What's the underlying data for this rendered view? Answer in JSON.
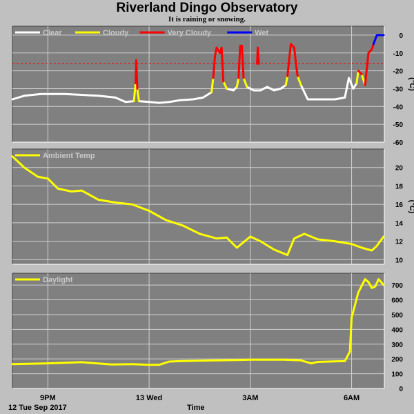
{
  "title": "Riverland Dingo Observatory",
  "subtitle": "It is raining or snowing.",
  "x_axis": {
    "title": "Time",
    "date_label": "12 Tue Sep 2017",
    "ticks": [
      {
        "label": "9PM",
        "t": 21.0
      },
      {
        "label": "13 Wed",
        "t": 24.0
      },
      {
        "label": "3AM",
        "t": 27.0
      },
      {
        "label": "6AM",
        "t": 30.0
      }
    ],
    "range_hours": [
      19.95,
      30.97
    ]
  },
  "colors": {
    "panel_bg": "#808080",
    "page_bg": "#c0c0c0",
    "clear": "#ffffff",
    "cloudy": "#ffff00",
    "very_cloudy": "#ff0000",
    "wet": "#0000ff",
    "temp": "#ffff00",
    "daylight": "#ffff00",
    "threshold": "#ff0000"
  },
  "chart_data": [
    {
      "type": "line",
      "name": "sky",
      "ylabel": "(°C)",
      "ylim": [
        -60,
        5
      ],
      "yticks": [
        0,
        -10,
        -20,
        -30,
        -40,
        -50,
        -60
      ],
      "grid": true,
      "legend": [
        {
          "label": "Clear",
          "color": "#ffffff"
        },
        {
          "label": "Cloudy",
          "color": "#ffff00"
        },
        {
          "label": "Very Cloudy",
          "color": "#ff0000"
        },
        {
          "label": "Wet",
          "color": "#0000ff"
        }
      ],
      "threshold_lines": [
        -16
      ],
      "series": [
        {
          "name": "Clear",
          "color": "#ffffff",
          "segments": [
            [
              [
                19.95,
                -36
              ],
              [
                20.3,
                -34
              ],
              [
                20.8,
                -33
              ],
              [
                21.5,
                -33
              ],
              [
                22.0,
                -33.5
              ],
              [
                22.5,
                -34
              ],
              [
                23.0,
                -35
              ],
              [
                23.3,
                -37.5
              ],
              [
                23.55,
                -37
              ]
            ],
            [
              [
                23.7,
                -37
              ],
              [
                24.0,
                -37.5
              ],
              [
                24.3,
                -38
              ],
              [
                24.6,
                -37.5
              ],
              [
                24.9,
                -36.5
              ],
              [
                25.3,
                -36
              ],
              [
                25.6,
                -35
              ],
              [
                25.85,
                -32
              ]
            ],
            [
              [
                26.3,
                -30
              ],
              [
                26.5,
                -31
              ],
              [
                26.6,
                -29
              ]
            ],
            [
              [
                26.9,
                -29
              ],
              [
                27.1,
                -31
              ],
              [
                27.3,
                -31
              ],
              [
                27.5,
                -29
              ],
              [
                27.7,
                -31
              ],
              [
                27.9,
                -30
              ],
              [
                28.05,
                -28
              ]
            ],
            [
              [
                28.5,
                -28
              ],
              [
                28.7,
                -36
              ],
              [
                29.0,
                -36
              ],
              [
                29.5,
                -36
              ],
              [
                29.8,
                -35
              ],
              [
                29.92,
                -24
              ],
              [
                30.05,
                -30
              ],
              [
                30.15,
                -27
              ]
            ]
          ]
        },
        {
          "name": "Cloudy",
          "color": "#ffff00",
          "segments": [
            [
              [
                23.55,
                -37
              ],
              [
                23.6,
                -27
              ]
            ],
            [
              [
                23.65,
                -30
              ],
              [
                23.7,
                -37
              ]
            ],
            [
              [
                25.85,
                -32
              ],
              [
                25.9,
                -24
              ]
            ],
            [
              [
                26.2,
                -26
              ],
              [
                26.3,
                -30
              ]
            ],
            [
              [
                26.6,
                -29
              ],
              [
                26.65,
                -24
              ]
            ],
            [
              [
                26.8,
                -24
              ],
              [
                26.9,
                -29
              ]
            ],
            [
              [
                28.05,
                -28
              ],
              [
                28.1,
                -23
              ]
            ],
            [
              [
                28.4,
                -23
              ],
              [
                28.5,
                -28
              ]
            ],
            [
              [
                30.15,
                -27
              ],
              [
                30.2,
                -20
              ]
            ],
            [
              [
                30.3,
                -22
              ],
              [
                30.4,
                -28
              ]
            ]
          ]
        },
        {
          "name": "Very Cloudy",
          "color": "#ff0000",
          "segments": [
            [
              [
                23.6,
                -27
              ],
              [
                23.62,
                -14
              ],
              [
                23.65,
                -30
              ]
            ],
            [
              [
                25.9,
                -24
              ],
              [
                25.95,
                -12
              ],
              [
                26.0,
                -7
              ],
              [
                26.1,
                -10
              ],
              [
                26.15,
                -7
              ],
              [
                26.2,
                -26
              ]
            ],
            [
              [
                26.65,
                -24
              ],
              [
                26.7,
                -6
              ],
              [
                26.75,
                -6
              ],
              [
                26.8,
                -24
              ]
            ],
            [
              [
                27.2,
                -16
              ],
              [
                27.22,
                -7
              ],
              [
                27.25,
                -16
              ]
            ],
            [
              [
                28.1,
                -23
              ],
              [
                28.2,
                -5
              ],
              [
                28.3,
                -7
              ],
              [
                28.35,
                -16
              ],
              [
                28.4,
                -23
              ]
            ],
            [
              [
                30.2,
                -20
              ],
              [
                30.3,
                -22
              ]
            ],
            [
              [
                30.4,
                -28
              ],
              [
                30.5,
                -10
              ],
              [
                30.6,
                -8
              ],
              [
                30.65,
                -5
              ]
            ]
          ]
        },
        {
          "name": "Wet",
          "color": "#0000ff",
          "segments": [
            [
              [
                30.65,
                -5
              ],
              [
                30.75,
                0
              ],
              [
                30.85,
                0
              ],
              [
                30.95,
                0
              ]
            ]
          ]
        }
      ]
    },
    {
      "type": "line",
      "name": "ambient",
      "ylabel": "(°C)",
      "ylim": [
        9.5,
        22
      ],
      "yticks": [
        10,
        12,
        14,
        16,
        18,
        20
      ],
      "grid": true,
      "legend": [
        {
          "label": "Ambient Temp",
          "color": "#ffff00"
        }
      ],
      "series": [
        {
          "name": "Ambient Temp",
          "color": "#ffff00",
          "x": [
            19.95,
            20.3,
            20.7,
            21.0,
            21.3,
            21.7,
            22.0,
            22.5,
            23.0,
            23.5,
            24.0,
            24.5,
            25.0,
            25.5,
            26.0,
            26.3,
            26.6,
            27.0,
            27.3,
            27.7,
            28.1,
            28.3,
            28.6,
            29.0,
            29.5,
            30.0,
            30.3,
            30.6,
            30.75,
            30.95
          ],
          "values": [
            21.2,
            20,
            19,
            18.8,
            17.7,
            17.4,
            17.5,
            16.5,
            16.2,
            16.0,
            15.3,
            14.3,
            13.7,
            12.8,
            12.3,
            12.4,
            11.3,
            12.5,
            12.0,
            11.1,
            10.5,
            12.3,
            12.8,
            12.2,
            12,
            11.7,
            11.3,
            11,
            11.5,
            12.5
          ]
        }
      ]
    },
    {
      "type": "line",
      "name": "daylight",
      "ylabel": "",
      "ylim": [
        0,
        780
      ],
      "yticks": [
        0,
        100,
        200,
        300,
        400,
        500,
        600,
        700
      ],
      "grid": true,
      "legend": [
        {
          "label": "Daylight",
          "color": "#ffff00"
        }
      ],
      "series": [
        {
          "name": "Daylight",
          "color": "#ffff00",
          "x": [
            19.95,
            21.0,
            22.0,
            22.9,
            23.5,
            24.0,
            24.3,
            24.6,
            25.0,
            26.0,
            26.5,
            27.0,
            27.5,
            28.0,
            28.5,
            28.8,
            29.0,
            29.5,
            29.8,
            29.95,
            30.0,
            30.2,
            30.4,
            30.5,
            30.6,
            30.7,
            30.8,
            30.95
          ],
          "values": [
            165,
            170,
            178,
            162,
            165,
            160,
            160,
            182,
            186,
            190,
            192,
            195,
            195,
            195,
            190,
            170,
            180,
            183,
            185,
            250,
            480,
            650,
            740,
            720,
            680,
            690,
            740,
            700
          ]
        }
      ]
    }
  ]
}
